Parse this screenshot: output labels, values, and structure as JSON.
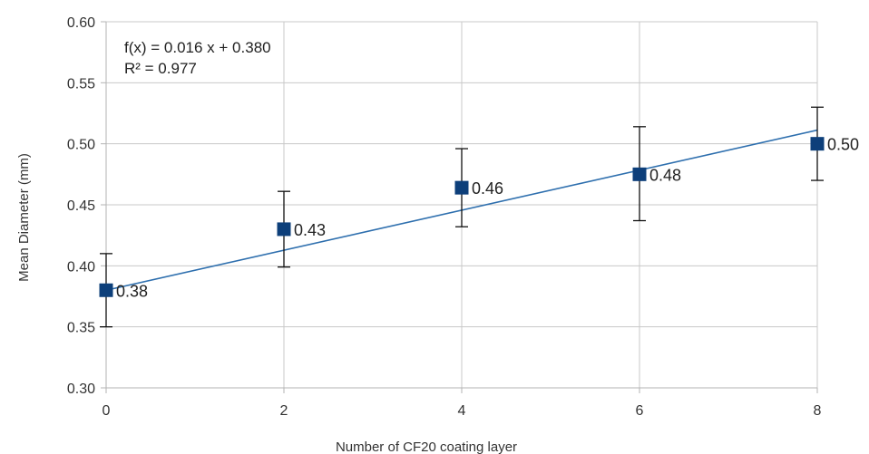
{
  "chart_data": {
    "type": "scatter",
    "title": "",
    "xlabel": "Number of CF20 coating layer",
    "ylabel": "Mean Diameter (mm)",
    "xlim": [
      0,
      8
    ],
    "ylim": [
      0.3,
      0.6
    ],
    "x_ticks": [
      "0",
      "2",
      "4",
      "6",
      "8"
    ],
    "y_ticks": [
      "0.30",
      "0.35",
      "0.40",
      "0.45",
      "0.50",
      "0.55",
      "0.60"
    ],
    "grid": true,
    "legend": "none",
    "series": [
      {
        "color": "#0d3f7a",
        "points": [
          {
            "x": 0,
            "y": 0.38,
            "err_low": 0.35,
            "err_high": 0.41,
            "label": "0.38"
          },
          {
            "x": 2,
            "y": 0.43,
            "err_low": 0.399,
            "err_high": 0.461,
            "label": "0.43"
          },
          {
            "x": 4,
            "y": 0.464,
            "err_low": 0.432,
            "err_high": 0.496,
            "label": "0.46"
          },
          {
            "x": 6,
            "y": 0.475,
            "err_low": 0.437,
            "err_high": 0.514,
            "label": "0.48"
          },
          {
            "x": 8,
            "y": 0.5,
            "err_low": 0.47,
            "err_high": 0.53,
            "label": "0.50"
          }
        ]
      }
    ],
    "trendline": {
      "slope": 0.0164,
      "intercept": 0.38,
      "color": "#2e6fae",
      "equation": "f(x) = 0.016 x + 0.380",
      "r_squared": "R² = 0.977"
    }
  }
}
